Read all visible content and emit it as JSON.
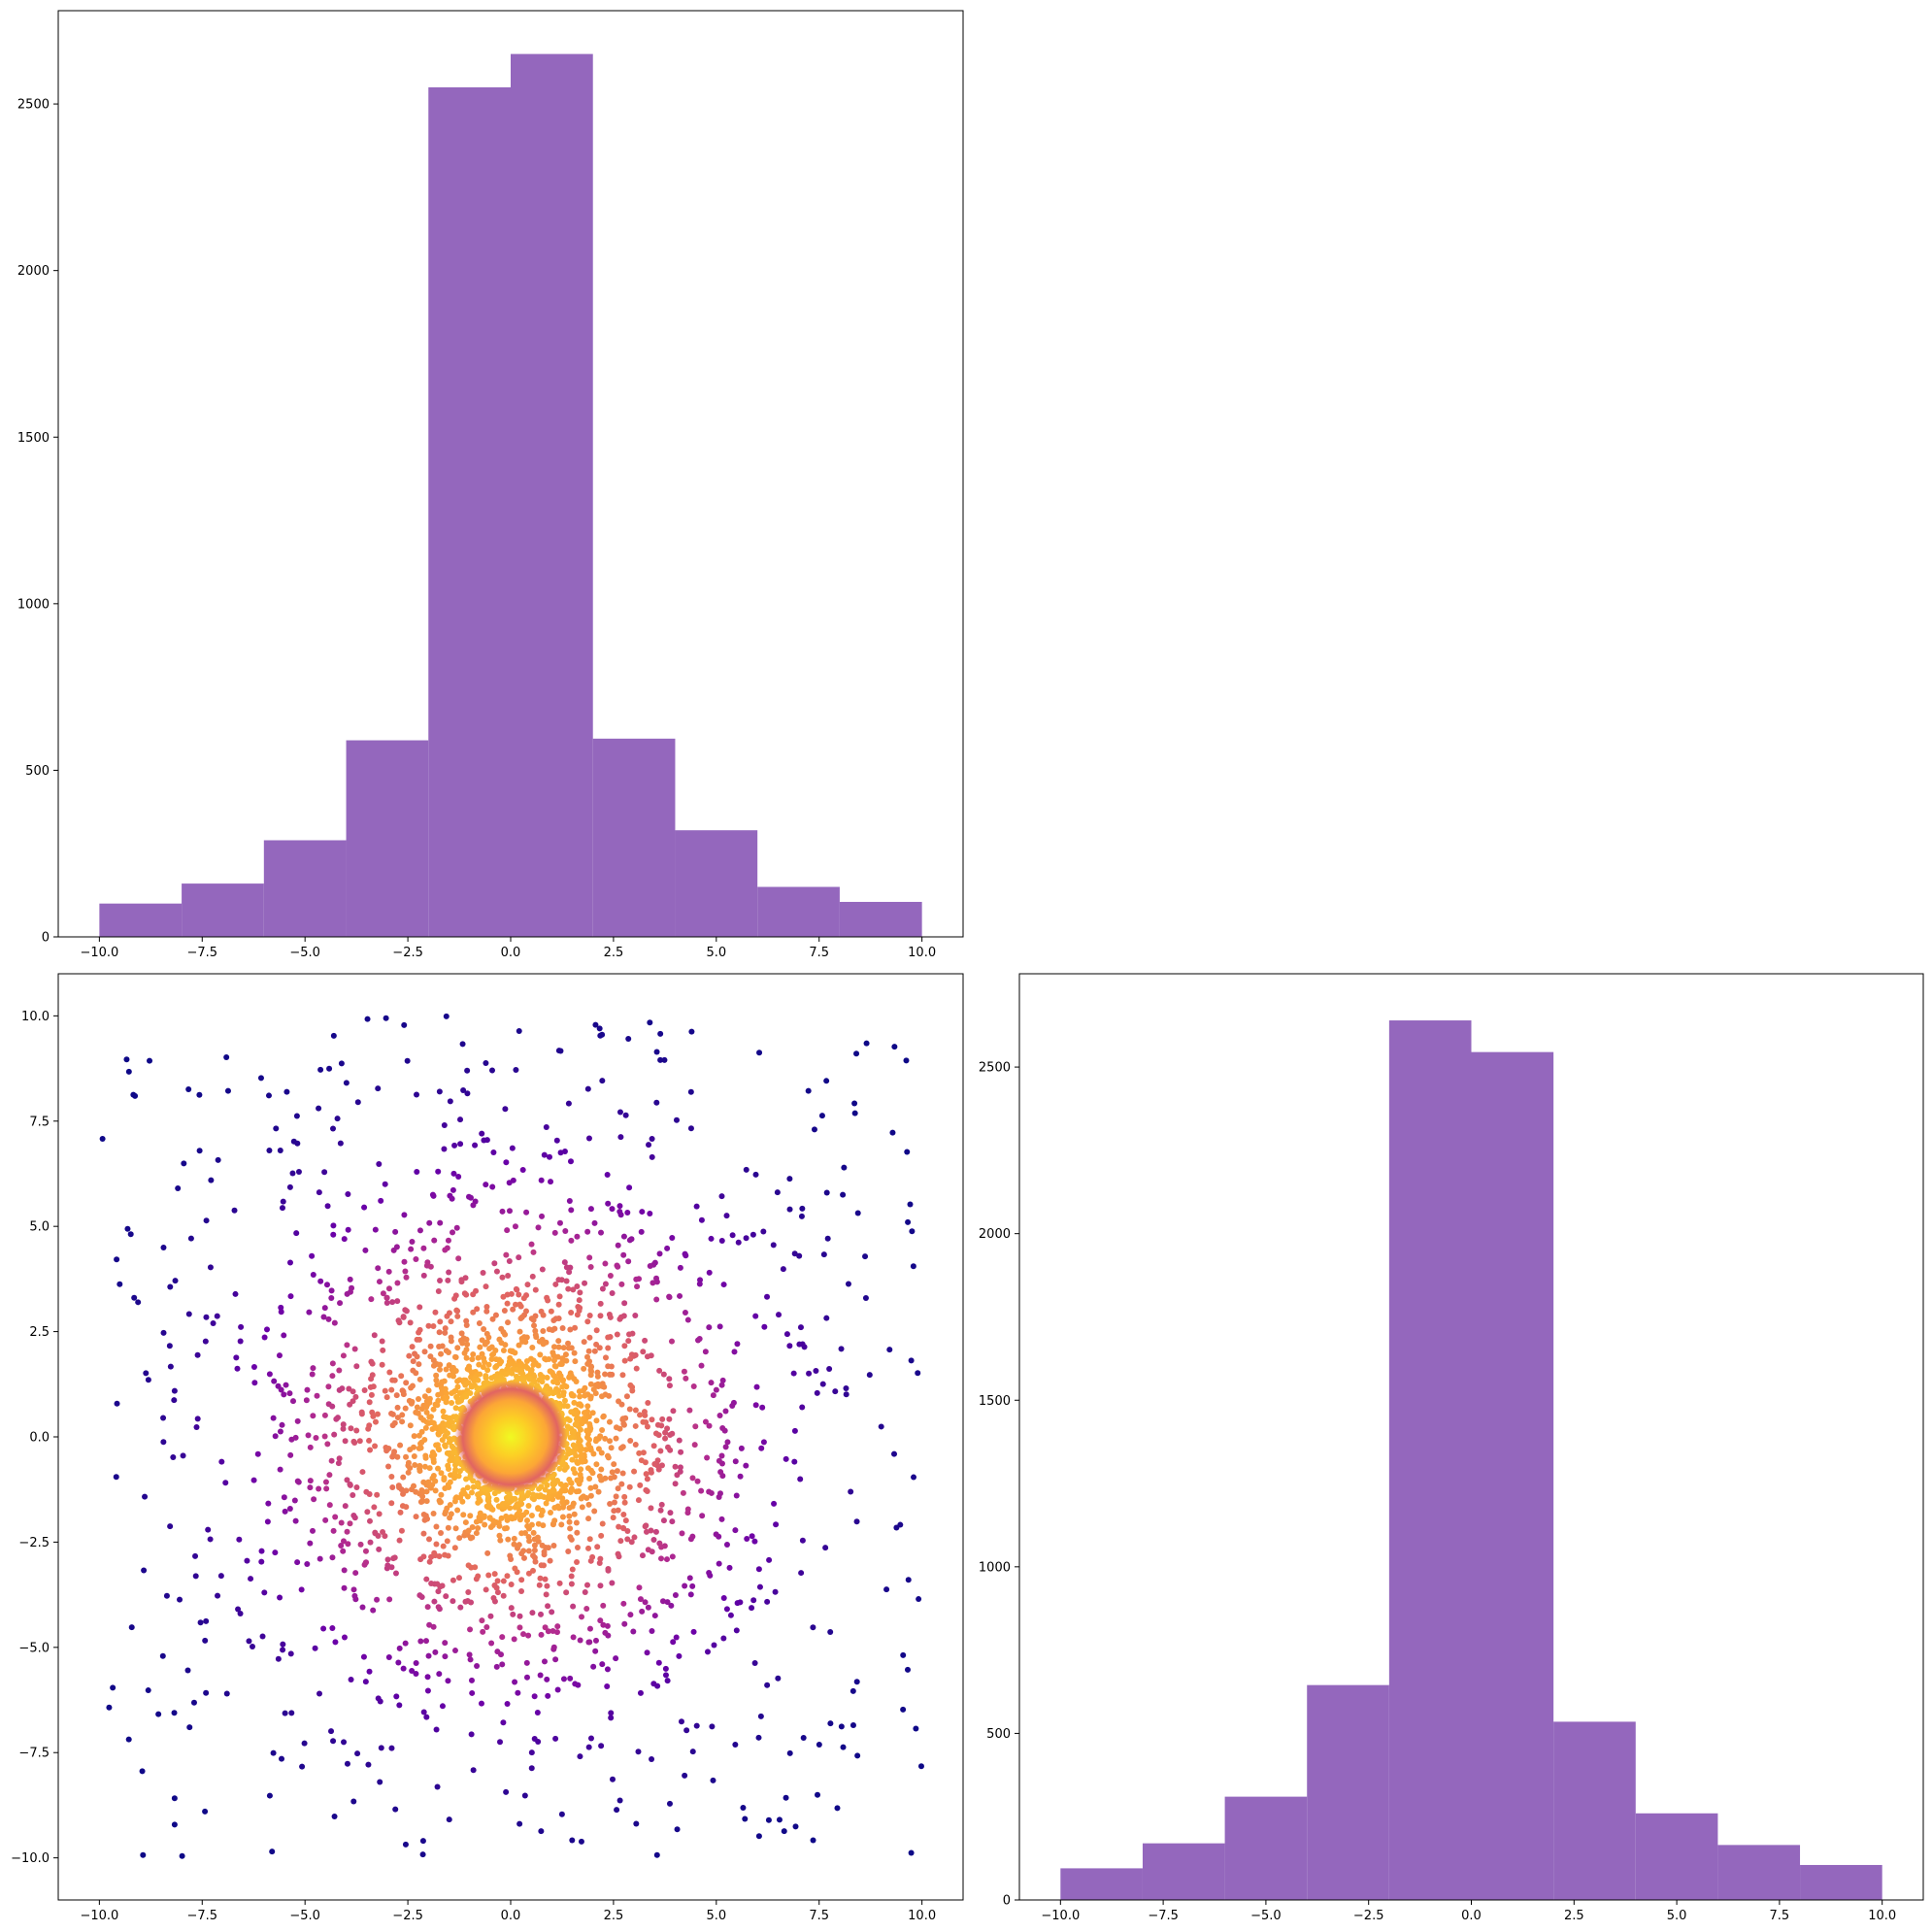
{
  "chart_data": [
    {
      "id": "top-histogram",
      "type": "bar",
      "title": "",
      "xlabel": "",
      "ylabel": "",
      "bin_edges": [
        -10,
        -8,
        -6,
        -4,
        -2,
        0,
        2,
        4,
        6,
        8,
        10
      ],
      "values": [
        100,
        160,
        290,
        590,
        2550,
        2650,
        595,
        320,
        150,
        105
      ],
      "xlim": [
        -11,
        11
      ],
      "ylim": [
        0,
        2780
      ],
      "xticks": [
        -10,
        -7.5,
        -5,
        -2.5,
        0,
        2.5,
        5,
        7.5,
        10
      ],
      "xtick_labels": [
        "−10.0",
        "−7.5",
        "−5.0",
        "−2.5",
        "0.0",
        "2.5",
        "5.0",
        "7.5",
        "10.0"
      ],
      "yticks": [
        0,
        500,
        1000,
        1500,
        2000,
        2500
      ],
      "ytick_labels": [
        "0",
        "500",
        "1000",
        "1500",
        "2000",
        "2500"
      ],
      "color": "#9467bd",
      "grid": false
    },
    {
      "id": "bottom-right-histogram",
      "type": "bar",
      "title": "",
      "xlabel": "",
      "ylabel": "",
      "bin_edges": [
        -10,
        -8,
        -6,
        -4,
        -2,
        0,
        2,
        4,
        6,
        8,
        10
      ],
      "values": [
        95,
        170,
        310,
        645,
        2640,
        2545,
        535,
        260,
        165,
        105
      ],
      "xlim": [
        -11,
        11
      ],
      "ylim": [
        0,
        2780
      ],
      "xticks": [
        -10,
        -7.5,
        -5,
        -2.5,
        0,
        2.5,
        5,
        7.5,
        10
      ],
      "xtick_labels": [
        "−10.0",
        "−7.5",
        "−5.0",
        "−2.5",
        "0.0",
        "2.5",
        "5.0",
        "7.5",
        "10.0"
      ],
      "yticks": [
        0,
        500,
        1000,
        1500,
        2000,
        2500
      ],
      "ytick_labels": [
        "0",
        "500",
        "1000",
        "1500",
        "2000",
        "2500"
      ],
      "color": "#9467bd",
      "grid": false
    },
    {
      "id": "bottom-left-scatter",
      "type": "scatter",
      "title": "",
      "xlabel": "",
      "ylabel": "",
      "description_of_points": "about 7000 points; x and y in [-10, 10]; dense concentration at (0, 0) with color by density (plasma colormap: yellow at center to dark indigo at edges)",
      "n_points_sampled": 3200,
      "center": [
        0,
        0
      ],
      "range": [
        -10,
        10
      ],
      "colormap": [
        "#0d0887",
        "#6a00a8",
        "#b12a90",
        "#e16462",
        "#fca636",
        "#f0f921"
      ],
      "xlim": [
        -11,
        11
      ],
      "ylim": [
        -11,
        11
      ],
      "xticks": [
        -10,
        -7.5,
        -5,
        -2.5,
        0,
        2.5,
        5,
        7.5,
        10
      ],
      "xtick_labels": [
        "−10.0",
        "−7.5",
        "−5.0",
        "−2.5",
        "0.0",
        "2.5",
        "5.0",
        "7.5",
        "10.0"
      ],
      "yticks": [
        -10,
        -7.5,
        -5,
        -2.5,
        0,
        2.5,
        5,
        7.5,
        10
      ],
      "ytick_labels": [
        "−10.0",
        "−7.5",
        "−5.0",
        "−2.5",
        "0.0",
        "2.5",
        "5.0",
        "7.5",
        "10.0"
      ],
      "grid": false
    }
  ]
}
